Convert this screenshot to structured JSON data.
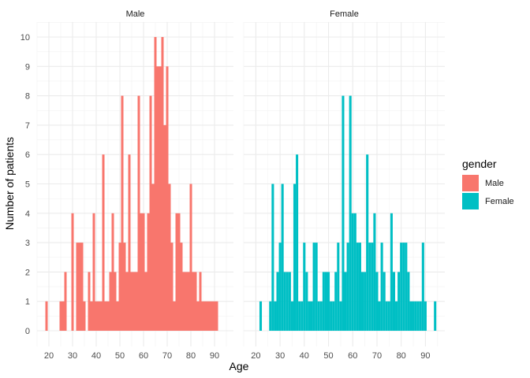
{
  "chart_data": {
    "type": "bar",
    "xlabel": "Age",
    "ylabel": "Number of patients",
    "ylim": [
      0,
      10.5
    ],
    "yticks": [
      0,
      1,
      2,
      3,
      4,
      5,
      6,
      7,
      8,
      9,
      10
    ],
    "xlim": [
      15,
      98
    ],
    "xticks": [
      20,
      30,
      40,
      50,
      60,
      70,
      80,
      90
    ],
    "grid": true,
    "legend": {
      "title": "gender",
      "position": "right",
      "entries": [
        {
          "label": "Male",
          "color": "#F8766D"
        },
        {
          "label": "Female",
          "color": "#00BFC4"
        }
      ]
    },
    "panels": [
      {
        "name": "Male",
        "color": "#F8766D",
        "ages": [
          19,
          25,
          26,
          27,
          30,
          32,
          33,
          34,
          35,
          37,
          38,
          39,
          40,
          41,
          42,
          43,
          44,
          45,
          46,
          47,
          48,
          49,
          50,
          51,
          52,
          53,
          54,
          55,
          56,
          57,
          58,
          59,
          60,
          61,
          62,
          63,
          64,
          65,
          66,
          67,
          68,
          69,
          70,
          71,
          72,
          73,
          74,
          75,
          76,
          77,
          78,
          79,
          80,
          81,
          82,
          83,
          84,
          85,
          86,
          87,
          88,
          89,
          90,
          91
        ],
        "counts": [
          1,
          1,
          1,
          2,
          4,
          3,
          3,
          3,
          1,
          2,
          1,
          4,
          1,
          1,
          1,
          6,
          1,
          1,
          2,
          4,
          2,
          1,
          3,
          8,
          3,
          2,
          6,
          2,
          2,
          2,
          8,
          4,
          4,
          2,
          4,
          8,
          5,
          10,
          9,
          9,
          10,
          7,
          9,
          5,
          3,
          1,
          4,
          4,
          3,
          2,
          2,
          2,
          5,
          2,
          2,
          1,
          2,
          1,
          1,
          1,
          1,
          1,
          1,
          1
        ]
      },
      {
        "name": "Female",
        "color": "#00BFC4",
        "ages": [
          22,
          26,
          27,
          28,
          29,
          30,
          31,
          32,
          33,
          34,
          35,
          36,
          37,
          38,
          39,
          40,
          41,
          42,
          43,
          44,
          45,
          46,
          47,
          48,
          49,
          50,
          51,
          52,
          53,
          54,
          55,
          56,
          57,
          58,
          59,
          60,
          61,
          62,
          63,
          64,
          65,
          66,
          67,
          68,
          69,
          70,
          71,
          72,
          73,
          74,
          75,
          76,
          77,
          78,
          79,
          80,
          81,
          82,
          83,
          84,
          85,
          86,
          87,
          88,
          89,
          90,
          94
        ],
        "counts": [
          1,
          1,
          5,
          1,
          2,
          3,
          5,
          2,
          2,
          2,
          1,
          5,
          6,
          1,
          1,
          3,
          2,
          1,
          1,
          3,
          3,
          1,
          1,
          2,
          2,
          2,
          1,
          1,
          2,
          3,
          1,
          8,
          2,
          3,
          8,
          4,
          4,
          3,
          3,
          2,
          2,
          6,
          3,
          3,
          4,
          2,
          1,
          3,
          2,
          1,
          1,
          4,
          2,
          1,
          2,
          3,
          3,
          3,
          2,
          1,
          1,
          1,
          1,
          1,
          3,
          1,
          1
        ]
      }
    ]
  }
}
